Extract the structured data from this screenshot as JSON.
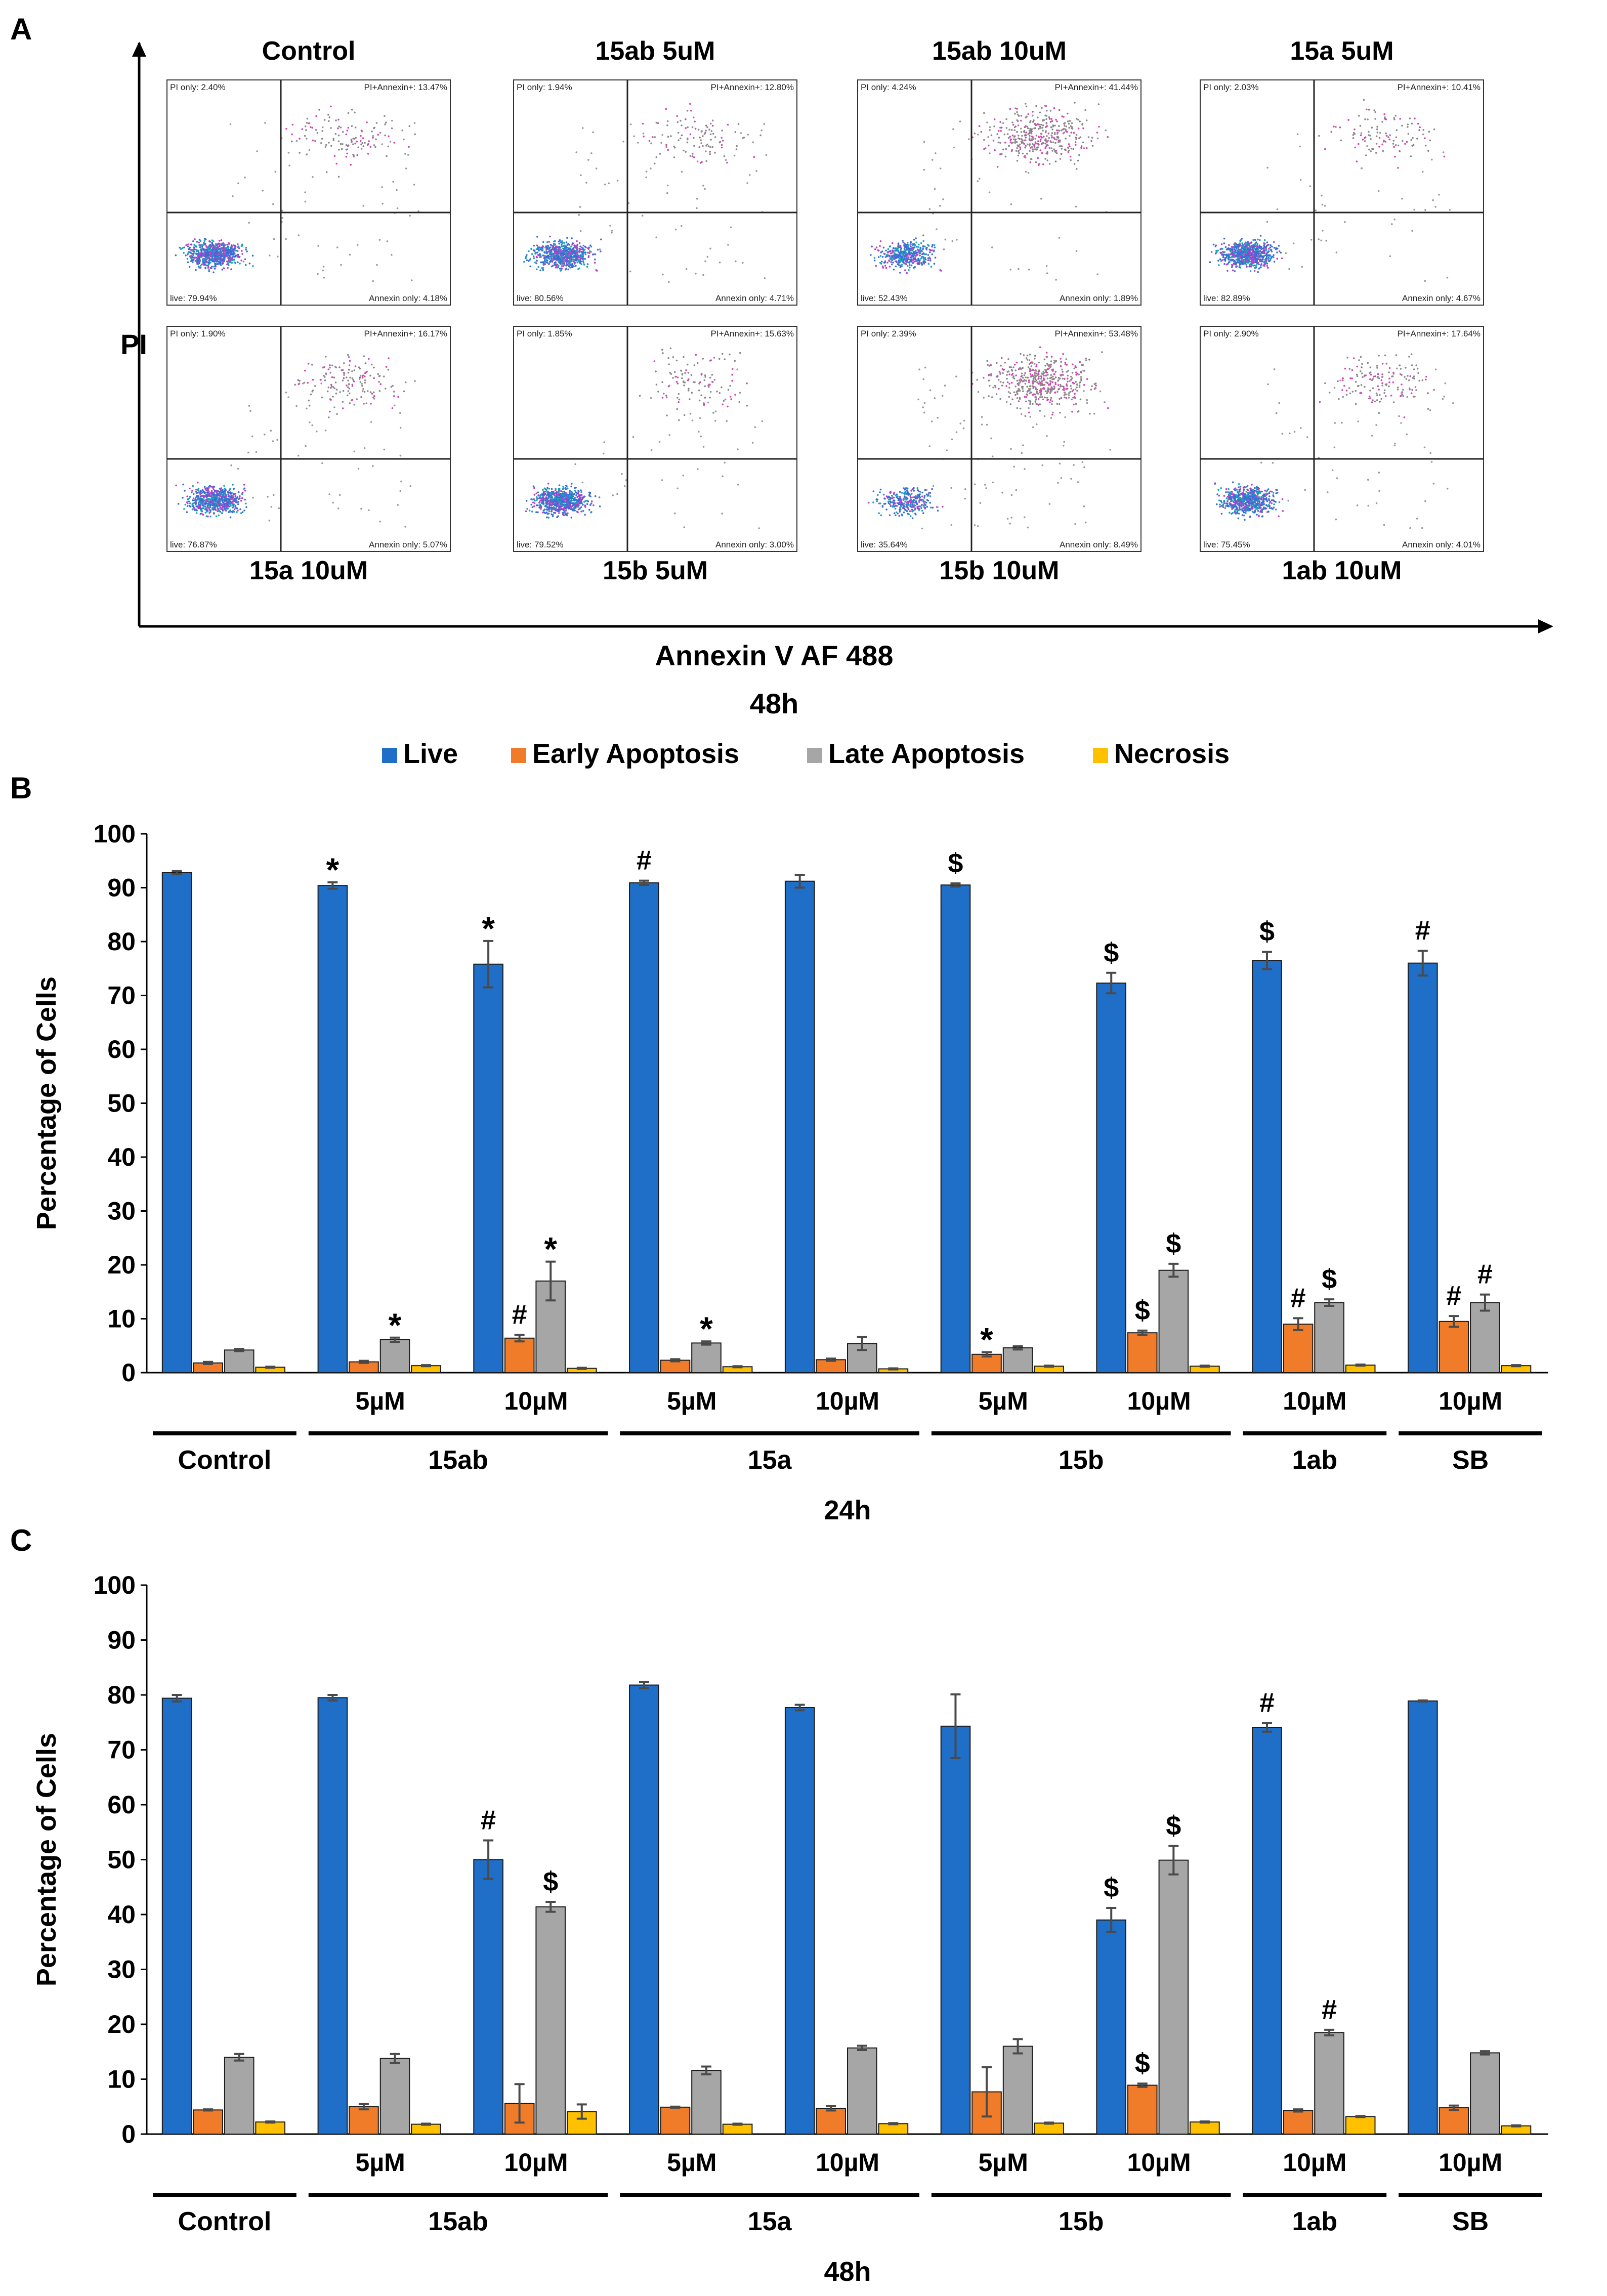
{
  "panel_a": {
    "letter": "A",
    "y_axis_label": "PI",
    "x_axis_label": "Annexin V AF 488",
    "timepoint": "48h",
    "plots": [
      {
        "title": "Control",
        "pi_only": "PI only: 2.40%",
        "pi_annexin": "PI+Annexin+: 13.47%",
        "live": "live: 79.94%",
        "annexin_only": "Annexin only: 4.18%"
      },
      {
        "title": "15ab 5uM",
        "pi_only": "PI only: 1.94%",
        "pi_annexin": "PI+Annexin+: 12.80%",
        "live": "live: 80.56%",
        "annexin_only": "Annexin only: 4.71%"
      },
      {
        "title": "15ab 10uM",
        "pi_only": "PI only: 4.24%",
        "pi_annexin": "PI+Annexin+: 41.44%",
        "live": "live: 52.43%",
        "annexin_only": "Annexin only: 1.89%"
      },
      {
        "title": "15a 5uM",
        "pi_only": "PI only: 2.03%",
        "pi_annexin": "PI+Annexin+: 10.41%",
        "live": "live: 82.89%",
        "annexin_only": "Annexin only: 4.67%"
      },
      {
        "title": "15a 10uM",
        "pi_only": "PI only: 1.90%",
        "pi_annexin": "PI+Annexin+: 16.17%",
        "live": "live: 76.87%",
        "annexin_only": "Annexin only: 5.07%"
      },
      {
        "title": "15b 5uM",
        "pi_only": "PI only: 1.85%",
        "pi_annexin": "PI+Annexin+: 15.63%",
        "live": "live: 79.52%",
        "annexin_only": "Annexin only: 3.00%"
      },
      {
        "title": "15b 10uM",
        "pi_only": "PI only: 2.39%",
        "pi_annexin": "PI+Annexin+: 53.48%",
        "live": "live: 35.64%",
        "annexin_only": "Annexin only: 8.49%"
      },
      {
        "title": "1ab 10uM",
        "pi_only": "PI only: 2.90%",
        "pi_annexin": "PI+Annexin+: 17.64%",
        "live": "live: 75.45%",
        "annexin_only": "Annexin only: 4.01%"
      }
    ]
  },
  "legend": [
    {
      "label": "Live",
      "color": "#1f6fc8"
    },
    {
      "label": "Early Apoptosis",
      "color": "#f07c2a"
    },
    {
      "label": "Late Apoptosis",
      "color": "#a6a6a6"
    },
    {
      "label": "Necrosis",
      "color": "#ffc000"
    }
  ],
  "chart_data": [
    {
      "letter": "B",
      "type": "bar",
      "ylabel": "Percentage of Cells",
      "xlabel": "24h",
      "ylim": [
        0,
        100
      ],
      "yticks": [
        0,
        10,
        20,
        30,
        40,
        50,
        60,
        70,
        80,
        90,
        100
      ],
      "conditions": [
        "",
        "5µM",
        "10µM",
        "5µM",
        "10µM",
        "5µM",
        "10µM",
        "10µM",
        "10µM"
      ],
      "groups": [
        {
          "label": "Control",
          "span": [
            0,
            0
          ]
        },
        {
          "label": "15ab",
          "span": [
            1,
            2
          ]
        },
        {
          "label": "15a",
          "span": [
            3,
            4
          ]
        },
        {
          "label": "15b",
          "span": [
            5,
            6
          ]
        },
        {
          "label": "1ab",
          "span": [
            7,
            7
          ]
        },
        {
          "label": "SB",
          "span": [
            8,
            8
          ]
        }
      ],
      "series": [
        {
          "name": "Live",
          "values": [
            92.8,
            90.4,
            75.8,
            90.9,
            91.2,
            90.5,
            72.3,
            76.5,
            76.0
          ],
          "errors": [
            0.3,
            0.6,
            4.3,
            0.4,
            1.2,
            0.3,
            1.9,
            1.6,
            2.3
          ],
          "annotations": [
            "",
            "*",
            "*",
            "#",
            "",
            "$",
            "$",
            "$",
            "#"
          ]
        },
        {
          "name": "Early Apoptosis",
          "values": [
            1.8,
            2.0,
            6.4,
            2.3,
            2.4,
            3.4,
            7.4,
            9.0,
            9.5
          ],
          "errors": [
            0.2,
            0.2,
            0.6,
            0.2,
            0.2,
            0.4,
            0.4,
            1.1,
            1.0
          ],
          "annotations": [
            "",
            "",
            "#",
            "",
            "",
            "*",
            "$",
            "#",
            "#"
          ]
        },
        {
          "name": "Late Apoptosis",
          "values": [
            4.2,
            6.1,
            17.0,
            5.5,
            5.4,
            4.6,
            19.0,
            13.0,
            13.0
          ],
          "errors": [
            0.2,
            0.4,
            3.6,
            0.3,
            1.2,
            0.3,
            1.2,
            0.6,
            1.5
          ],
          "annotations": [
            "",
            "*",
            "*",
            "*",
            "",
            "",
            "$",
            "$",
            "#"
          ]
        },
        {
          "name": "Necrosis",
          "values": [
            1.0,
            1.3,
            0.8,
            1.1,
            0.7,
            1.2,
            1.2,
            1.4,
            1.3
          ],
          "errors": [
            0.1,
            0.1,
            0.1,
            0.1,
            0.1,
            0.1,
            0.1,
            0.1,
            0.1
          ],
          "annotations": [
            "",
            "",
            "",
            "",
            "",
            "",
            "",
            "",
            ""
          ]
        }
      ]
    },
    {
      "letter": "C",
      "type": "bar",
      "ylabel": "Percentage of Cells",
      "xlabel": "48h",
      "ylim": [
        0,
        100
      ],
      "yticks": [
        0,
        10,
        20,
        30,
        40,
        50,
        60,
        70,
        80,
        90,
        100
      ],
      "conditions": [
        "",
        "5µM",
        "10µM",
        "5µM",
        "10µM",
        "5µM",
        "10µM",
        "10µM",
        "10µM"
      ],
      "groups": [
        {
          "label": "Control",
          "span": [
            0,
            0
          ]
        },
        {
          "label": "15ab",
          "span": [
            1,
            2
          ]
        },
        {
          "label": "15a",
          "span": [
            3,
            4
          ]
        },
        {
          "label": "15b",
          "span": [
            5,
            6
          ]
        },
        {
          "label": "1ab",
          "span": [
            7,
            7
          ]
        },
        {
          "label": "SB",
          "span": [
            8,
            8
          ]
        }
      ],
      "series": [
        {
          "name": "Live",
          "values": [
            79.4,
            79.5,
            50.0,
            81.8,
            77.7,
            74.3,
            39.0,
            74.1,
            78.9
          ],
          "errors": [
            0.6,
            0.5,
            3.5,
            0.6,
            0.5,
            5.8,
            2.2,
            0.8,
            0.1
          ],
          "annotations": [
            "",
            "",
            "#",
            "",
            "",
            "",
            "$",
            "#",
            ""
          ]
        },
        {
          "name": "Early Apoptosis",
          "values": [
            4.4,
            5.0,
            5.6,
            4.9,
            4.7,
            7.7,
            8.9,
            4.3,
            4.8
          ],
          "errors": [
            0.1,
            0.5,
            3.5,
            0.1,
            0.4,
            4.5,
            0.3,
            0.2,
            0.4
          ],
          "annotations": [
            "",
            "",
            "",
            "",
            "",
            "",
            "$",
            "",
            ""
          ]
        },
        {
          "name": "Late Apoptosis",
          "values": [
            14.0,
            13.8,
            41.4,
            11.6,
            15.7,
            16.0,
            49.9,
            18.5,
            14.8
          ],
          "errors": [
            0.6,
            0.8,
            0.9,
            0.7,
            0.4,
            1.3,
            2.6,
            0.5,
            0.3
          ],
          "annotations": [
            "",
            "",
            "$",
            "",
            "",
            "",
            "$",
            "#",
            ""
          ]
        },
        {
          "name": "Necrosis",
          "values": [
            2.2,
            1.8,
            4.1,
            1.8,
            1.9,
            2.0,
            2.2,
            3.2,
            1.5
          ],
          "errors": [
            0.1,
            0.1,
            1.3,
            0.1,
            0.1,
            0.1,
            0.1,
            0.1,
            0.1
          ],
          "annotations": [
            "",
            "",
            "",
            "",
            "",
            "",
            "",
            "",
            ""
          ]
        }
      ]
    }
  ]
}
